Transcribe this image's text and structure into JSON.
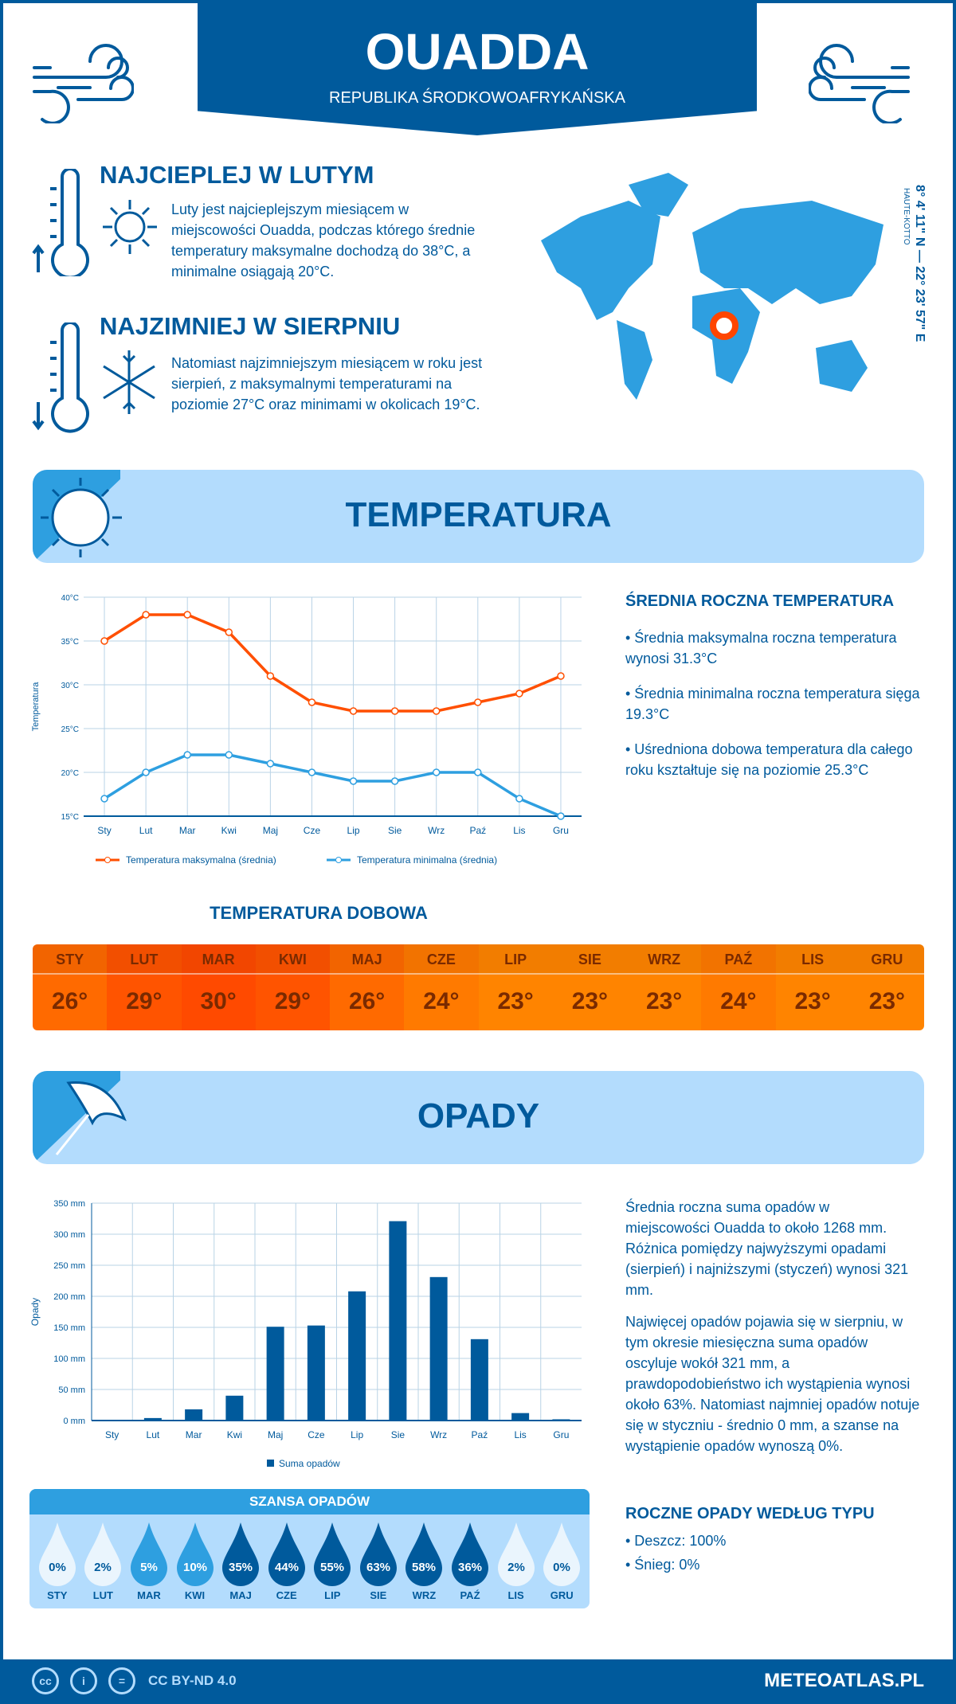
{
  "header": {
    "title": "OUADDA",
    "subtitle": "REPUBLIKA ŚRODKOWOAFRYKAŃSKA"
  },
  "warmest": {
    "title": "NAJCIEPLEJ W LUTYM",
    "text": "Luty jest najcieplejszym miesiącem w miejscowości Ouadda, podczas którego średnie temperatury maksymalne dochodzą do 38°C, a minimalne osiągają 20°C."
  },
  "coldest": {
    "title": "NAJZIMNIEJ W SIERPNIU",
    "text": "Natomiast najzimniejszym miesiącem w roku jest sierpień, z maksymalnymi temperaturami na poziomie 27°C oraz minimami w okolicach 19°C."
  },
  "location": {
    "coords": "8° 4' 11\" N — 22° 23' 57\" E",
    "region": "HAUTE-KOTTO",
    "marker_color": "#ff4500"
  },
  "temperature_section": {
    "title": "TEMPERATURA",
    "summary_title": "ŚREDNIA ROCZNA TEMPERATURA",
    "bullets": [
      "• Średnia maksymalna roczna temperatura wynosi 31.3°C",
      "• Średnia minimalna roczna temperatura sięga 19.3°C",
      "• Uśredniona dobowa temperatura dla całego roku kształtuje się na poziomie 25.3°C"
    ]
  },
  "chart_data": [
    {
      "type": "line",
      "ylabel": "Temperatura",
      "categories": [
        "Sty",
        "Lut",
        "Mar",
        "Kwi",
        "Maj",
        "Cze",
        "Lip",
        "Sie",
        "Wrz",
        "Paź",
        "Lis",
        "Gru"
      ],
      "ylim": [
        15,
        40
      ],
      "yticks": [
        "15°C",
        "20°C",
        "25°C",
        "30°C",
        "35°C",
        "40°C"
      ],
      "grid": true,
      "legend": "bottom",
      "series": [
        {
          "name": "Temperatura maksymalna (średnia)",
          "color": "#ff4f00",
          "values": [
            35,
            38,
            38,
            36,
            31,
            28,
            27,
            27,
            27,
            28,
            29,
            31
          ]
        },
        {
          "name": "Temperatura minimalna (średnia)",
          "color": "#2e9fe0",
          "values": [
            17,
            20,
            22,
            22,
            21,
            20,
            19,
            19,
            20,
            20,
            17,
            15
          ]
        }
      ]
    },
    {
      "type": "bar",
      "ylabel": "Opady",
      "categories": [
        "Sty",
        "Lut",
        "Mar",
        "Kwi",
        "Maj",
        "Cze",
        "Lip",
        "Sie",
        "Wrz",
        "Paź",
        "Lis",
        "Gru"
      ],
      "ylim": [
        0,
        350
      ],
      "yticks": [
        "0 mm",
        "50 mm",
        "100 mm",
        "150 mm",
        "200 mm",
        "250 mm",
        "300 mm",
        "350 mm"
      ],
      "grid": true,
      "legend": "bottom",
      "series": [
        {
          "name": "Suma opadów",
          "color": "#005a9c",
          "values": [
            0,
            4,
            18,
            40,
            151,
            153,
            208,
            321,
            231,
            131,
            12,
            2
          ]
        }
      ]
    }
  ],
  "daily": {
    "title": "TEMPERATURA DOBOWA",
    "months": [
      "STY",
      "LUT",
      "MAR",
      "KWI",
      "MAJ",
      "CZE",
      "LIP",
      "SIE",
      "WRZ",
      "PAŹ",
      "LIS",
      "GRU"
    ],
    "values": [
      "26°",
      "29°",
      "30°",
      "29°",
      "26°",
      "24°",
      "23°",
      "23°",
      "23°",
      "24°",
      "23°",
      "23°"
    ],
    "colors": [
      "#ff6a00",
      "#ff5400",
      "#ff4a00",
      "#ff5400",
      "#ff6a00",
      "#ff7a00",
      "#ff8400",
      "#ff8400",
      "#ff8400",
      "#ff7a00",
      "#ff8400",
      "#ff8400"
    ]
  },
  "precip_section": {
    "title": "OPADY",
    "text1": "Średnia roczna suma opadów w miejscowości Ouadda to około 1268 mm. Różnica pomiędzy najwyższymi opadami (sierpień) i najniższymi (styczeń) wynosi 321 mm.",
    "text2": "Najwięcej opadów pojawia się w sierpniu, w tym okresie miesięczna suma opadów oscyluje wokół 321 mm, a prawdopodobieństwo ich wystąpienia wynosi około 63%. Natomiast najmniej opadów notuje się w styczniu - średnio 0 mm, a szanse na wystąpienie opadów wynoszą 0%."
  },
  "chance": {
    "title": "SZANSA OPADÓW",
    "months": [
      "STY",
      "LUT",
      "MAR",
      "KWI",
      "MAJ",
      "CZE",
      "LIP",
      "SIE",
      "WRZ",
      "PAŹ",
      "LIS",
      "GRU"
    ],
    "values": [
      "0%",
      "2%",
      "5%",
      "10%",
      "35%",
      "44%",
      "55%",
      "63%",
      "58%",
      "36%",
      "2%",
      "0%"
    ],
    "percent": [
      0,
      2,
      5,
      10,
      35,
      44,
      55,
      63,
      58,
      36,
      2,
      0
    ]
  },
  "types": {
    "title": "ROCZNE OPADY WEDŁUG TYPU",
    "items": [
      "• Deszcz: 100%",
      "• Śnieg: 0%"
    ]
  },
  "footer": {
    "license": "CC BY-ND 4.0",
    "site": "METEOATLAS.PL",
    "cc": "cc",
    "by": "i",
    "nd": "="
  }
}
